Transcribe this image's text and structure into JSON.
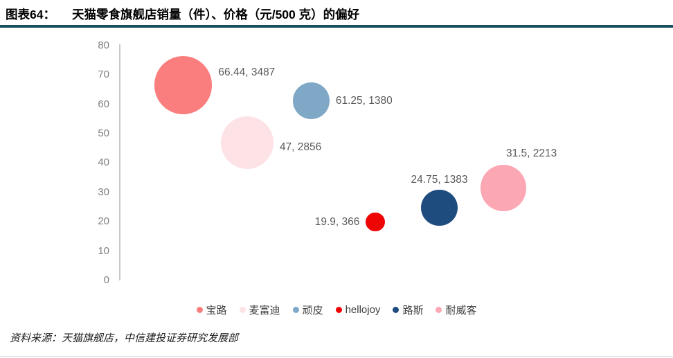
{
  "header": {
    "figure_label": "图表64：",
    "title": "天猫零食旗舰店销量（件）、价格（元/500 克）的偏好"
  },
  "chart_data": {
    "type": "scatter",
    "subtype": "bubble",
    "title": "天猫零食旗舰店销量（件）、价格（元/500 克）的偏好",
    "y_meaning": "价格（元/500 克）",
    "size_meaning": "销量（件）",
    "grid": false,
    "legend_position": "bottom",
    "y_axis": {
      "min": 0,
      "max": 80,
      "tick_step": 10,
      "ticks": [
        0,
        10,
        20,
        30,
        40,
        50,
        60,
        70,
        80
      ]
    },
    "points": [
      {
        "name": "宝路",
        "price": 66.44,
        "sales": 3487,
        "label": "66.44, 3487",
        "color": "#fa7e7e",
        "x_index": 1,
        "label_pos": "right",
        "label_dy": -18
      },
      {
        "name": "麦富迪",
        "price": 47,
        "sales": 2856,
        "label": "47, 2856",
        "color": "#fde2e6",
        "x_index": 2,
        "label_pos": "right",
        "label_dy": 7
      },
      {
        "name": "顽皮",
        "price": 61.25,
        "sales": 1380,
        "label": "61.25, 1380",
        "color": "#7fa8c7",
        "x_index": 3,
        "label_pos": "right",
        "label_dy": 1
      },
      {
        "name": "hellojoy",
        "price": 19.9,
        "sales": 366,
        "label": "19.9, 366",
        "color": "#f00505",
        "x_index": 4,
        "label_pos": "left",
        "label_dy": 0
      },
      {
        "name": "路斯",
        "price": 24.75,
        "sales": 1383,
        "label": "24.75, 1383",
        "color": "#1f4c7f",
        "x_index": 5,
        "label_pos": "above",
        "label_dy": 0
      },
      {
        "name": "耐威客",
        "price": 31.5,
        "sales": 2213,
        "label": "31.5, 2213",
        "color": "#fba7b4",
        "x_index": 6,
        "label_pos": "above-right",
        "label_dy": 0
      }
    ]
  },
  "footer": {
    "source": "资料来源：天猫旗舰店，中信建投证券研究发展部"
  },
  "colors": {
    "divider": "#16505e",
    "axis_line": "#c9c9c9",
    "tick_text": "#7f7f7f",
    "label_text": "#595959",
    "legend_text": "#404040",
    "bottom_border": "#d9d9d9"
  }
}
